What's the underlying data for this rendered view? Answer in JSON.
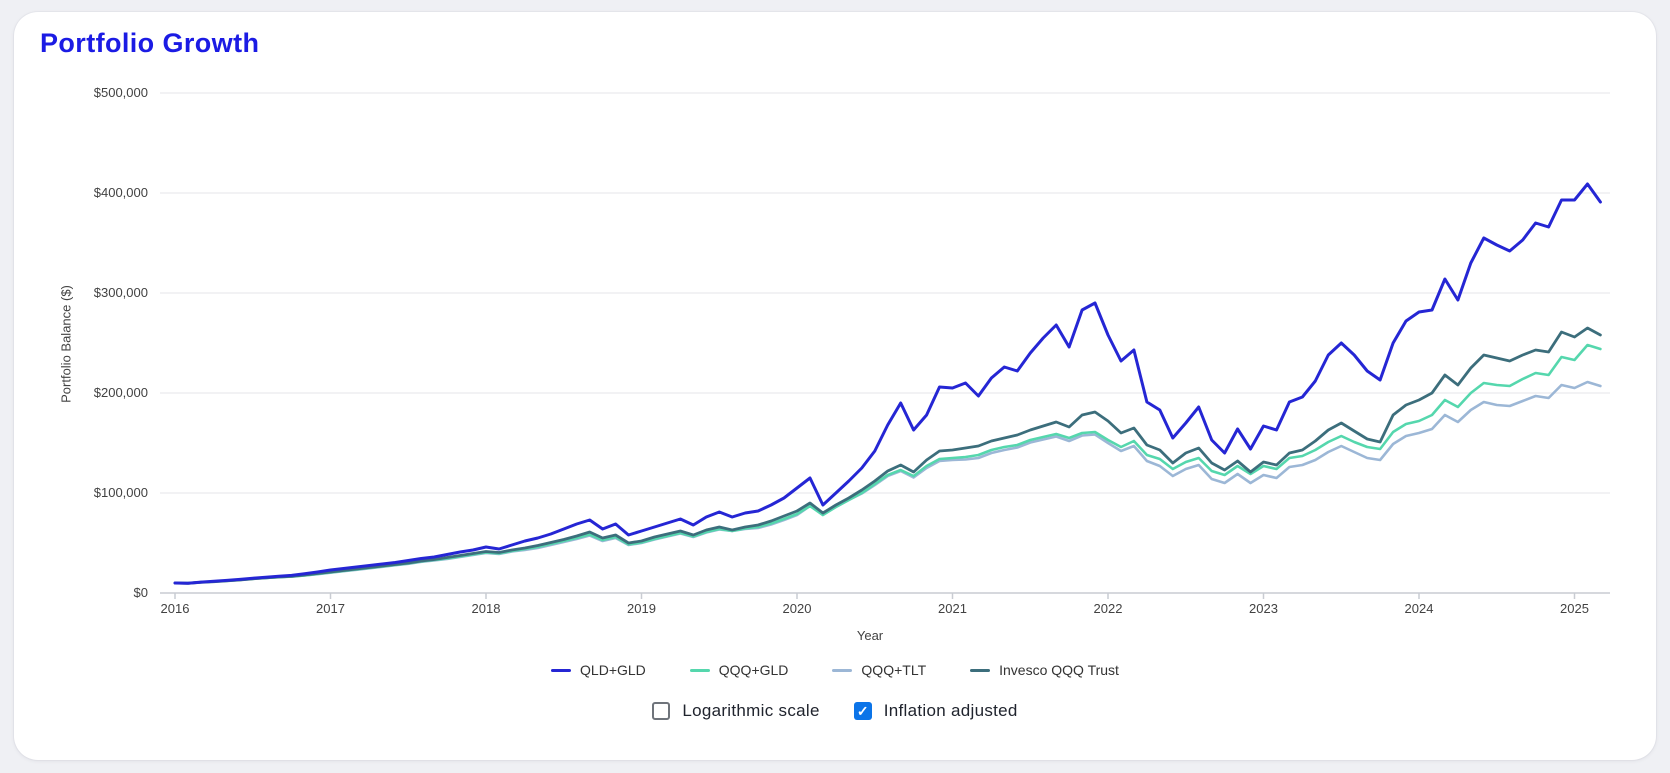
{
  "page": {
    "title": "Portfolio Growth"
  },
  "chart": {
    "y_axis_title": "Portfolio Balance ($)",
    "x_axis_title": "Year",
    "y_ticks": [
      {
        "value": 0,
        "label": "$0"
      },
      {
        "value": 100000,
        "label": "$100,000"
      },
      {
        "value": 200000,
        "label": "$200,000"
      },
      {
        "value": 300000,
        "label": "$300,000"
      },
      {
        "value": 400000,
        "label": "$400,000"
      },
      {
        "value": 500000,
        "label": "$500,000"
      }
    ],
    "x_ticks": [
      {
        "value": 2016,
        "label": "2016"
      },
      {
        "value": 2017,
        "label": "2017"
      },
      {
        "value": 2018,
        "label": "2018"
      },
      {
        "value": 2019,
        "label": "2019"
      },
      {
        "value": 2020,
        "label": "2020"
      },
      {
        "value": 2021,
        "label": "2021"
      },
      {
        "value": 2022,
        "label": "2022"
      },
      {
        "value": 2023,
        "label": "2023"
      },
      {
        "value": 2024,
        "label": "2024"
      },
      {
        "value": 2025,
        "label": "2025"
      }
    ],
    "legend": [
      {
        "label": "QLD+GLD",
        "color": "#2526d4"
      },
      {
        "label": "QQQ+GLD",
        "color": "#55d7ad"
      },
      {
        "label": "QQQ+TLT",
        "color": "#9cb7d6"
      },
      {
        "label": "Invesco QQQ Trust",
        "color": "#3c6e7c"
      }
    ],
    "colors": {
      "gridline": "#ededf0",
      "axis_line": "#c9ccd2",
      "tick_text": "#424242"
    }
  },
  "controls": [
    {
      "label": "Logarithmic scale",
      "checked": false
    },
    {
      "label": "Inflation adjusted",
      "checked": true,
      "accent_color": "#0b74e8"
    }
  ],
  "chart_data": {
    "type": "line",
    "title": "Portfolio Growth",
    "xlabel": "Year",
    "ylabel": "Portfolio Balance ($)",
    "frequency": "monthly",
    "x_start": "2016-01",
    "x_end": "2025-03",
    "xlim": [
      2016,
      2025.3
    ],
    "ylim": [
      0,
      500000
    ],
    "grid": "horizontal",
    "legend_position": "bottom",
    "series": [
      {
        "name": "QLD+GLD",
        "color": "#2526d4",
        "values": [
          10000,
          9800,
          10900,
          11700,
          12600,
          13600,
          14800,
          15800,
          16800,
          17600,
          19200,
          21000,
          23000,
          24500,
          26000,
          27500,
          29000,
          30500,
          32500,
          34500,
          36000,
          38500,
          41000,
          43000,
          46000,
          44000,
          48000,
          52000,
          55000,
          59000,
          64000,
          69000,
          73000,
          64000,
          69000,
          58000,
          62000,
          66000,
          70000,
          74000,
          68000,
          76000,
          81000,
          76000,
          80000,
          82000,
          88000,
          95000,
          105000,
          115000,
          88000,
          100000,
          112000,
          125000,
          142000,
          168000,
          190000,
          163000,
          178000,
          206000,
          205000,
          210000,
          197000,
          215000,
          226000,
          222000,
          240000,
          255000,
          268000,
          246000,
          283000,
          290000,
          258000,
          232000,
          243000,
          191000,
          183000,
          155000,
          170000,
          186000,
          153000,
          140000,
          164000,
          144000,
          167000,
          163000,
          191000,
          196000,
          212000,
          238000,
          250000,
          238000,
          222000,
          213000,
          250000,
          272000,
          281000,
          283000,
          314000,
          293000,
          330000,
          355000,
          348000,
          342000,
          353000,
          370000,
          366000,
          393000,
          393000,
          409000,
          391000
        ]
      },
      {
        "name": "QQQ+GLD",
        "color": "#55d7ad",
        "values": [
          10000,
          9800,
          10800,
          11400,
          12200,
          13100,
          14200,
          15000,
          15800,
          16400,
          17600,
          19000,
          20500,
          22000,
          23500,
          25000,
          26500,
          28000,
          29500,
          31500,
          33000,
          34500,
          36500,
          38500,
          40500,
          39500,
          42000,
          44000,
          46000,
          49000,
          52000,
          55000,
          58500,
          53000,
          56000,
          48500,
          50500,
          54000,
          57000,
          60000,
          56500,
          61000,
          64000,
          62000,
          64500,
          66000,
          69500,
          74000,
          79000,
          87000,
          78000,
          86000,
          93000,
          100000,
          109000,
          118000,
          123000,
          117000,
          127000,
          134000,
          135000,
          136000,
          138000,
          143000,
          146000,
          148000,
          153000,
          156000,
          159000,
          155000,
          160000,
          161000,
          153000,
          146000,
          152000,
          138000,
          134000,
          124000,
          131000,
          135000,
          122000,
          118000,
          127000,
          119000,
          127000,
          124000,
          135000,
          137000,
          143000,
          151000,
          157000,
          151000,
          146000,
          144000,
          161000,
          169000,
          172000,
          178000,
          193000,
          186000,
          200000,
          210000,
          208000,
          207000,
          214000,
          220000,
          218000,
          236000,
          233000,
          248000,
          244000
        ]
      },
      {
        "name": "QQQ+TLT",
        "color": "#9cb7d6",
        "values": [
          10000,
          9900,
          10800,
          11400,
          12200,
          13100,
          14300,
          15100,
          15900,
          16400,
          17500,
          18800,
          20300,
          21800,
          23200,
          24700,
          26200,
          27800,
          29200,
          31200,
          32500,
          34000,
          36000,
          38000,
          40000,
          39000,
          41500,
          43000,
          45000,
          48000,
          51000,
          54000,
          57500,
          52000,
          55000,
          48000,
          50000,
          53500,
          56500,
          59500,
          56000,
          60500,
          63500,
          62000,
          64000,
          65000,
          68500,
          73000,
          78000,
          87000,
          79000,
          86000,
          93000,
          99500,
          108000,
          117000,
          122000,
          115500,
          125000,
          132000,
          133000,
          133500,
          135000,
          140000,
          143000,
          145500,
          150500,
          153500,
          156500,
          152000,
          157500,
          158500,
          150000,
          142000,
          147000,
          132000,
          127000,
          117000,
          124000,
          128000,
          114000,
          110000,
          119000,
          110000,
          118000,
          115000,
          126000,
          128000,
          133000,
          141000,
          147000,
          141000,
          135000,
          133000,
          149000,
          157000,
          160000,
          164000,
          178000,
          171000,
          183000,
          191000,
          188000,
          187000,
          192000,
          197000,
          195000,
          208000,
          205000,
          211000,
          207000
        ]
      },
      {
        "name": "Invesco QQQ Trust",
        "color": "#3c6e7c",
        "values": [
          10000,
          9700,
          10700,
          11300,
          12100,
          13000,
          14200,
          15100,
          16000,
          16700,
          18000,
          19500,
          21000,
          22500,
          24000,
          25500,
          27000,
          28500,
          30000,
          32000,
          33500,
          35500,
          37500,
          39500,
          41500,
          40500,
          43000,
          45000,
          47500,
          50500,
          53500,
          57000,
          61000,
          55000,
          58000,
          50000,
          52000,
          56000,
          59000,
          62000,
          58000,
          63000,
          66000,
          63000,
          66000,
          68000,
          72000,
          77000,
          82000,
          90000,
          80000,
          88000,
          95000,
          103000,
          112000,
          122000,
          128000,
          121000,
          133000,
          142000,
          143000,
          145000,
          147000,
          152000,
          155000,
          158000,
          163000,
          167000,
          171000,
          166000,
          178000,
          181000,
          172000,
          160000,
          165000,
          148000,
          143000,
          130000,
          140000,
          145000,
          130000,
          123000,
          132000,
          121000,
          131000,
          128000,
          140000,
          143000,
          152000,
          163000,
          170000,
          162000,
          154000,
          151000,
          178000,
          188000,
          193000,
          200000,
          218000,
          208000,
          225000,
          238000,
          235000,
          232000,
          238000,
          243000,
          241000,
          261000,
          256000,
          265000,
          258000
        ]
      }
    ]
  }
}
